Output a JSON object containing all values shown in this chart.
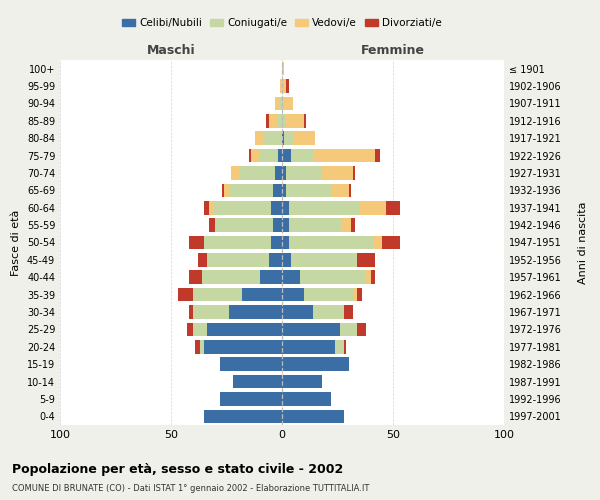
{
  "age_groups": [
    "0-4",
    "5-9",
    "10-14",
    "15-19",
    "20-24",
    "25-29",
    "30-34",
    "35-39",
    "40-44",
    "45-49",
    "50-54",
    "55-59",
    "60-64",
    "65-69",
    "70-74",
    "75-79",
    "80-84",
    "85-89",
    "90-94",
    "95-99",
    "100+"
  ],
  "birth_years": [
    "1997-2001",
    "1992-1996",
    "1987-1991",
    "1982-1986",
    "1977-1981",
    "1972-1976",
    "1967-1971",
    "1962-1966",
    "1957-1961",
    "1952-1956",
    "1947-1951",
    "1942-1946",
    "1937-1941",
    "1932-1936",
    "1927-1931",
    "1922-1926",
    "1917-1921",
    "1912-1916",
    "1907-1911",
    "1902-1906",
    "≤ 1901"
  ],
  "colors": {
    "celibi": "#3A6EA5",
    "coniugati": "#C5D8A4",
    "vedovi": "#F5C97A",
    "divorziati": "#C0392B"
  },
  "males": {
    "celibi": [
      35,
      28,
      22,
      28,
      35,
      34,
      24,
      18,
      10,
      6,
      5,
      4,
      5,
      4,
      3,
      2,
      0,
      0,
      0,
      0,
      0
    ],
    "coniugati": [
      0,
      0,
      0,
      0,
      2,
      6,
      16,
      22,
      26,
      28,
      30,
      26,
      26,
      20,
      16,
      8,
      8,
      2,
      1,
      0,
      0
    ],
    "vedovi": [
      0,
      0,
      0,
      0,
      0,
      0,
      0,
      0,
      0,
      0,
      0,
      0,
      2,
      2,
      4,
      4,
      4,
      4,
      2,
      1,
      0
    ],
    "divorziati": [
      0,
      0,
      0,
      0,
      2,
      3,
      2,
      7,
      6,
      4,
      7,
      3,
      2,
      1,
      0,
      1,
      0,
      1,
      0,
      0,
      0
    ]
  },
  "females": {
    "celibi": [
      28,
      22,
      18,
      30,
      24,
      26,
      14,
      10,
      8,
      4,
      3,
      3,
      3,
      2,
      2,
      4,
      1,
      0,
      0,
      0,
      0
    ],
    "coniugati": [
      0,
      0,
      0,
      0,
      4,
      8,
      14,
      22,
      30,
      30,
      38,
      24,
      32,
      20,
      16,
      10,
      4,
      2,
      1,
      0,
      0
    ],
    "vedovi": [
      0,
      0,
      0,
      0,
      0,
      0,
      0,
      2,
      2,
      0,
      4,
      4,
      12,
      8,
      14,
      28,
      10,
      8,
      4,
      2,
      1
    ],
    "divorziati": [
      0,
      0,
      0,
      0,
      1,
      4,
      4,
      2,
      2,
      8,
      8,
      2,
      6,
      1,
      1,
      2,
      0,
      1,
      0,
      1,
      0
    ]
  },
  "xlim": 100,
  "title": "Popolazione per età, sesso e stato civile - 2002",
  "subtitle": "COMUNE DI BRUNATE (CO) - Dati ISTAT 1° gennaio 2002 - Elaborazione TUTTITALIA.IT",
  "ylabel_left": "Fasce di età",
  "ylabel_right": "Anni di nascita",
  "xlabel_left": "Maschi",
  "xlabel_right": "Femmine",
  "legend_labels": [
    "Celibi/Nubili",
    "Coniugati/e",
    "Vedovi/e",
    "Divorziati/e"
  ],
  "bg_color": "#f0f0ea",
  "plot_bg_color": "#ffffff"
}
